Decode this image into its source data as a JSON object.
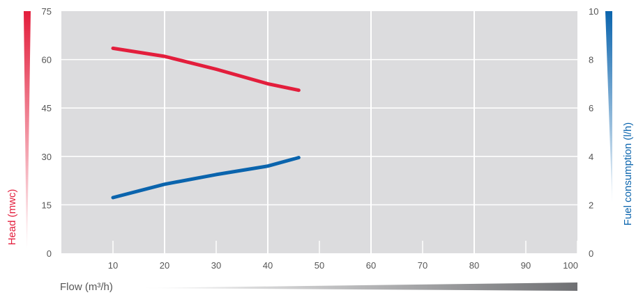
{
  "chart_data": {
    "type": "line",
    "x": [
      10,
      20,
      30,
      40,
      46
    ],
    "xlabel": "Flow (m³/h)",
    "xlim": [
      0,
      100
    ],
    "xticks": [
      "10",
      "20",
      "30",
      "40",
      "50",
      "60",
      "70",
      "80",
      "90",
      "100"
    ],
    "ylabel_left": "Head (mwc)",
    "ylim_left": [
      0,
      75
    ],
    "yticks_left": [
      "0",
      "15",
      "30",
      "45",
      "60",
      "75"
    ],
    "ylabel_right": "Fuel consumption (l/h)",
    "ylim_right": [
      0,
      10
    ],
    "yticks_right": [
      "0",
      "2",
      "4",
      "6",
      "8",
      "10"
    ],
    "grid": true,
    "series": [
      {
        "axis": "left",
        "color": "#e31e3c",
        "values": [
          63.5,
          61,
          57,
          52.5,
          50.5
        ]
      },
      {
        "axis": "right",
        "color": "#0a64ad",
        "values": [
          2.3,
          2.85,
          3.25,
          3.6,
          3.95
        ]
      }
    ],
    "colors": {
      "plot_background": "#dcdcde",
      "grid": "#ffffff",
      "head": "#e31e3c",
      "fuel": "#0a64ad",
      "flow_wedge": "#6f7073"
    }
  }
}
